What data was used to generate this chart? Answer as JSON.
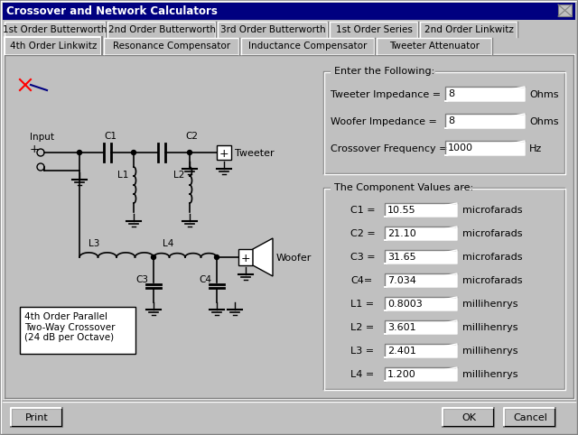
{
  "title": "Crossover and Network Calculators",
  "bg_color": "#c0c0c0",
  "tab_row1": [
    "1st Order Butterworth",
    "2nd Order Butterworth",
    "3rd Order Butterworth",
    "1st Order Series",
    "2nd Order Linkwitz"
  ],
  "tab_row2_active": "4th Order Linkwitz",
  "tab_row2_inactive": [
    "Resonance Compensator",
    "Inductance Compensator",
    "Tweeter Attenuator"
  ],
  "input_section_title": "Enter the Following:",
  "input_labels": [
    "Tweeter Impedance =",
    "Woofer Impedance =",
    "Crossover Frequency ="
  ],
  "input_values": [
    "8",
    "8",
    "1000"
  ],
  "input_units": [
    "Ohms",
    "Ohms",
    "Hz"
  ],
  "output_section_title": "The Component Values are:",
  "output_labels": [
    "C1 =",
    "C2 =",
    "C3 =",
    "C4=",
    "L1 =",
    "L2 =",
    "L3 =",
    "L4 ="
  ],
  "output_values": [
    "10.55",
    "21.10",
    "31.65",
    "7.034",
    "0.8003",
    "3.601",
    "2.401",
    "1.200"
  ],
  "output_units": [
    "microfarads",
    "microfarads",
    "microfarads",
    "microfarads",
    "millihenrys",
    "millihenrys",
    "millihenrys",
    "millihenrys"
  ],
  "circuit_label": "4th Order Parallel\nTwo-Way Crossover\n(24 dB per Octave)",
  "bottom_buttons": [
    "Print",
    "OK",
    "Cancel"
  ]
}
